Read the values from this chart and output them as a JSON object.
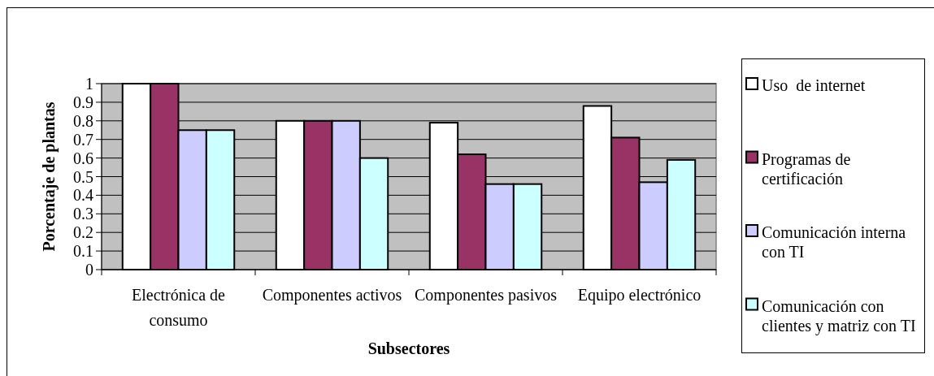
{
  "chart_data": {
    "type": "bar",
    "xlabel": "Subsectores",
    "ylabel": "Porcentaje de plantas",
    "categories": [
      "Electrónica de consumo",
      "Componentes activos",
      "Componentes pasivos",
      "Equipo electrónico"
    ],
    "series": [
      {
        "name": "Uso  de internet",
        "color": "#ffffff",
        "values": [
          1,
          0.8,
          0.79,
          0.88
        ]
      },
      {
        "name": "Programas de certificación",
        "color": "#993366",
        "values": [
          1,
          0.8,
          0.62,
          0.71
        ]
      },
      {
        "name": "Comunicación interna con TI",
        "color": "#ccccff",
        "values": [
          0.75,
          0.8,
          0.46,
          0.47
        ]
      },
      {
        "name": "Comunicación con clientes y matriz con TI",
        "color": "#ccffff",
        "values": [
          0.75,
          0.6,
          0.46,
          0.59
        ]
      }
    ],
    "ylim": [
      0,
      1
    ],
    "yticks": [
      0,
      0.1,
      0.2,
      0.3,
      0.4,
      0.5,
      0.6,
      0.7,
      0.8,
      0.9,
      1
    ],
    "grid": "y",
    "legend": "right"
  }
}
